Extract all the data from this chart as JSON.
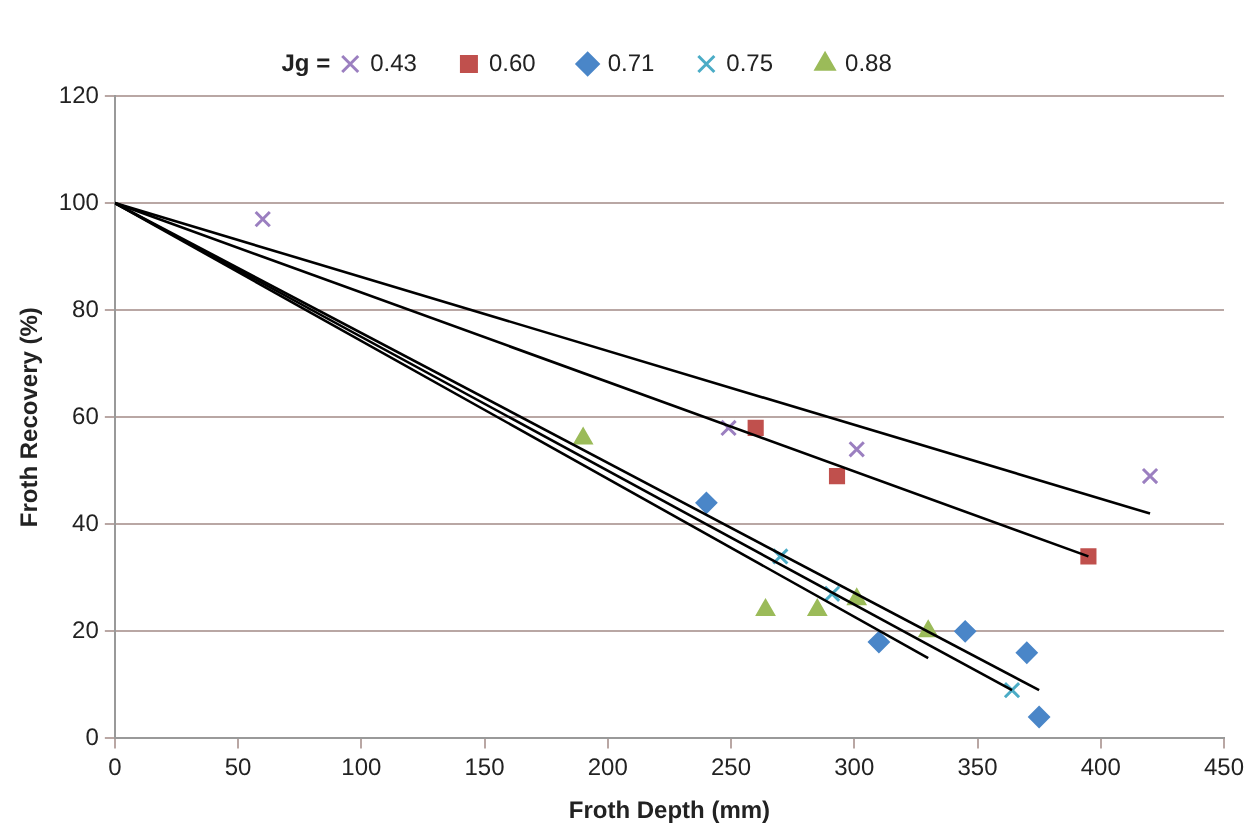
{
  "chart_data": {
    "type": "scatter",
    "xlabel": "Froth Depth (mm)",
    "ylabel": "Froth Recovery (%)",
    "legend_title": "Jg =",
    "legend": "top",
    "xlim": [
      0,
      450
    ],
    "xticks": [
      0,
      50,
      100,
      150,
      200,
      250,
      300,
      350,
      400,
      450
    ],
    "ylim": [
      0,
      120
    ],
    "yticks": [
      0,
      20,
      40,
      60,
      80,
      100,
      120
    ],
    "grid": "y",
    "series": [
      {
        "name": "0.43",
        "color": "#9b7fc0",
        "marker": "cross",
        "x": [
          60,
          249,
          301,
          420
        ],
        "values": [
          97,
          58,
          54,
          49
        ]
      },
      {
        "name": "0.60",
        "color": "#c0504d",
        "marker": "square",
        "x": [
          260,
          293,
          395
        ],
        "values": [
          58,
          49,
          34
        ]
      },
      {
        "name": "0.71",
        "color": "#4a86c8",
        "marker": "diamond",
        "x": [
          240,
          310,
          345,
          370,
          375
        ],
        "values": [
          44,
          18,
          20,
          16,
          4
        ]
      },
      {
        "name": "0.75",
        "color": "#4bacc6",
        "marker": "cross",
        "x": [
          270,
          291,
          364
        ],
        "values": [
          34,
          27,
          9
        ]
      },
      {
        "name": "0.88",
        "color": "#9bbb59",
        "marker": "triangle",
        "x": [
          190,
          264,
          285,
          301,
          330
        ],
        "values": [
          56,
          24,
          24,
          26,
          20
        ]
      },
      {
        "type": "line",
        "color": "#000000",
        "marker": "none",
        "x": [
          0,
          420
        ],
        "values": [
          100,
          42
        ]
      },
      {
        "type": "line",
        "color": "#000000",
        "marker": "none",
        "x": [
          0,
          395
        ],
        "values": [
          100,
          34
        ]
      },
      {
        "type": "line",
        "color": "#000000",
        "marker": "none",
        "x": [
          0,
          375
        ],
        "values": [
          100,
          9
        ]
      },
      {
        "type": "line",
        "color": "#000000",
        "marker": "none",
        "x": [
          0,
          364
        ],
        "values": [
          100,
          9
        ]
      },
      {
        "type": "line",
        "color": "#000000",
        "marker": "none",
        "x": [
          0,
          330
        ],
        "values": [
          100,
          15
        ]
      }
    ]
  }
}
